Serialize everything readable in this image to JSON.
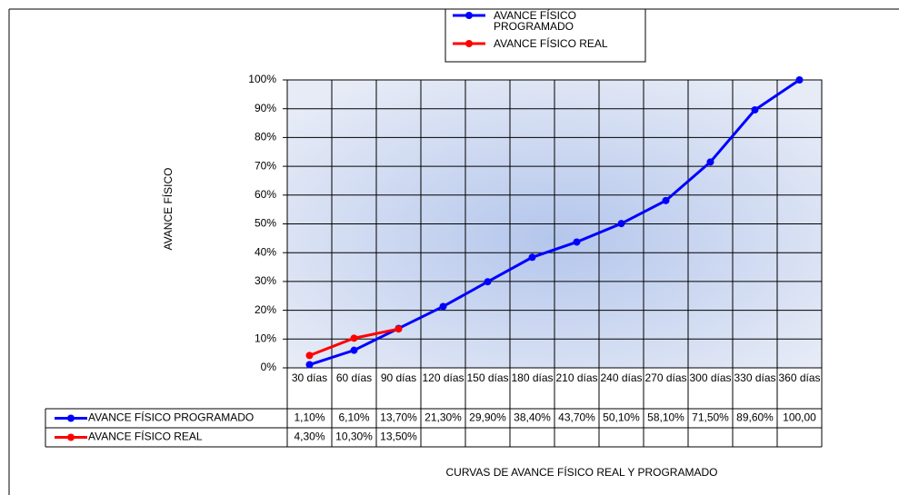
{
  "chart_data": {
    "type": "line",
    "x_label": "CURVAS DE AVANCE FÍSICO REAL Y PROGRAMADO",
    "y_label": "AVANCE FÍSICO",
    "categories": [
      "30 días",
      "60 días",
      "90 días",
      "120 días",
      "150 días",
      "180 días",
      "210 días",
      "240 días",
      "270 días",
      "300 días",
      "330 días",
      "360 días"
    ],
    "series": [
      {
        "name": "AVANCE FÍSICO PROGRAMADO",
        "color": "#0000ff",
        "values": [
          1.1,
          6.1,
          13.7,
          21.3,
          29.9,
          38.4,
          43.7,
          50.1,
          58.1,
          71.5,
          89.6,
          100
        ],
        "value_labels": [
          "1,10%",
          "6,10%",
          "13,70%",
          "21,30%",
          "29,90%",
          "38,40%",
          "43,70%",
          "50,10%",
          "58,10%",
          "71,50%",
          "89,60%",
          "100,00"
        ]
      },
      {
        "name": "AVANCE FÍSICO REAL",
        "color": "#ff0000",
        "values": [
          4.3,
          10.3,
          13.5,
          null,
          null,
          null,
          null,
          null,
          null,
          null,
          null,
          null
        ],
        "value_labels": [
          "4,30%",
          "10,30%",
          "13,50%",
          null,
          null,
          null,
          null,
          null,
          null,
          null,
          null,
          null
        ]
      }
    ],
    "ylim": [
      0,
      100
    ],
    "yticks": [
      {
        "value": 0,
        "label": "0%"
      },
      {
        "value": 10,
        "label": "10%"
      },
      {
        "value": 20,
        "label": "20%"
      },
      {
        "value": 30,
        "label": "30%"
      },
      {
        "value": 40,
        "label": "40%"
      },
      {
        "value": 50,
        "label": "50%"
      },
      {
        "value": 60,
        "label": "60%"
      },
      {
        "value": 70,
        "label": "70%"
      },
      {
        "value": 80,
        "label": "80%"
      },
      {
        "value": 90,
        "label": "90%"
      },
      {
        "value": 100,
        "label": "100%"
      }
    ],
    "grid": true,
    "legend": "top",
    "data_table": true
  }
}
